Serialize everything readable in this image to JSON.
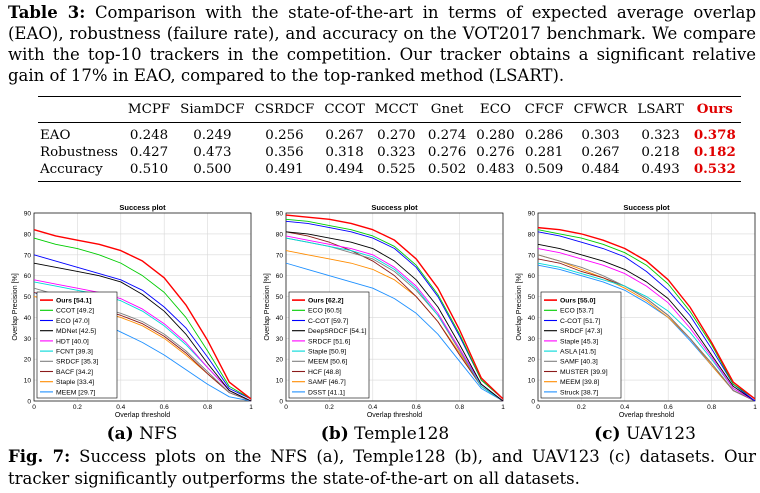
{
  "top_caption": {
    "label": "Table 3:",
    "text": "Comparison with the state-of-the-art in terms of expected average overlap (EAO), robustness (failure rate), and accuracy on the VOT2017 benchmark. We compare with the top-10 trackers in the competition. Our tracker obtains a significant relative gain of 17% in EAO, compared to the top-ranked method (LSART)."
  },
  "table": {
    "columns": [
      "MCPF",
      "SiamDCF",
      "CSRDCF",
      "CCOT",
      "MCCT",
      "Gnet",
      "ECO",
      "CFCF",
      "CFWCR",
      "LSART",
      "Ours"
    ],
    "rows": [
      {
        "label": "EAO",
        "values": [
          "0.248",
          "0.249",
          "0.256",
          "0.267",
          "0.270",
          "0.274",
          "0.280",
          "0.286",
          "0.303",
          "0.323",
          "0.378"
        ]
      },
      {
        "label": "Robustness",
        "values": [
          "0.427",
          "0.473",
          "0.356",
          "0.318",
          "0.323",
          "0.276",
          "0.276",
          "0.281",
          "0.267",
          "0.218",
          "0.182"
        ]
      },
      {
        "label": "Accuracy",
        "values": [
          "0.510",
          "0.500",
          "0.491",
          "0.494",
          "0.525",
          "0.502",
          "0.483",
          "0.509",
          "0.484",
          "0.493",
          "0.532"
        ]
      }
    ],
    "highlight_color": "#e00000"
  },
  "chart_data": [
    {
      "type": "line",
      "title": "Success plot",
      "xlabel": "Overlap threshold",
      "ylabel": "Overlap Precision [%]",
      "xlim": [
        0,
        1
      ],
      "ylim": [
        0,
        90
      ],
      "xticks": [
        "0",
        "0.2",
        "0.4",
        "0.6",
        "0.8",
        "1"
      ],
      "yticks": [
        "0",
        "10",
        "20",
        "30",
        "40",
        "50",
        "60",
        "70",
        "80",
        "90"
      ],
      "grid": true,
      "legend_position": "bottom-left",
      "x": [
        0,
        0.1,
        0.2,
        0.3,
        0.4,
        0.5,
        0.6,
        0.7,
        0.8,
        0.9,
        1.0
      ],
      "series": [
        {
          "name": "Ours [54.1]",
          "color": "#ff0000",
          "bold": true,
          "values": [
            82,
            79,
            77,
            75,
            72,
            67,
            59,
            46,
            29,
            9,
            1
          ]
        },
        {
          "name": "CCOT [49.2]",
          "color": "#00cc00",
          "values": [
            78,
            75,
            73,
            70,
            66,
            60,
            52,
            40,
            24,
            7,
            1
          ]
        },
        {
          "name": "ECO [47.0]",
          "color": "#0000ff",
          "values": [
            70,
            67,
            64,
            61,
            58,
            53,
            45,
            35,
            21,
            6,
            1
          ]
        },
        {
          "name": "MDNet [42.5]",
          "color": "#000000",
          "values": [
            66,
            64,
            62,
            60,
            57,
            51,
            43,
            32,
            18,
            5,
            0
          ]
        },
        {
          "name": "HDT [40.0]",
          "color": "#ff00ff",
          "values": [
            58,
            56,
            54,
            52,
            49,
            44,
            37,
            28,
            16,
            5,
            0
          ]
        },
        {
          "name": "FCNT [39.3]",
          "color": "#00d8d8",
          "values": [
            57,
            55,
            53,
            51,
            48,
            43,
            36,
            27,
            16,
            5,
            0
          ]
        },
        {
          "name": "SRDCF [35.3]",
          "color": "#808080",
          "values": [
            54,
            51,
            48,
            45,
            42,
            38,
            32,
            24,
            14,
            4,
            0
          ]
        },
        {
          "name": "BACF [34.2]",
          "color": "#8b1a1a",
          "values": [
            52,
            49,
            47,
            44,
            41,
            37,
            31,
            23,
            13,
            4,
            0
          ]
        },
        {
          "name": "Staple [33.4]",
          "color": "#ff8c00",
          "values": [
            50,
            48,
            46,
            43,
            40,
            36,
            30,
            22,
            13,
            4,
            0
          ]
        },
        {
          "name": "MEEM [29.7]",
          "color": "#1e90ff",
          "values": [
            52,
            47,
            42,
            38,
            33,
            28,
            22,
            15,
            8,
            2,
            0
          ]
        }
      ],
      "caption_label": "(a)",
      "caption_text": "NFS"
    },
    {
      "type": "line",
      "title": "Success plot",
      "xlabel": "Overlap threshold",
      "ylabel": "Overlap Precision [%]",
      "xlim": [
        0,
        1
      ],
      "ylim": [
        0,
        90
      ],
      "xticks": [
        "0",
        "0.2",
        "0.4",
        "0.6",
        "0.8",
        "1"
      ],
      "yticks": [
        "0",
        "10",
        "20",
        "30",
        "40",
        "50",
        "60",
        "70",
        "80",
        "90"
      ],
      "grid": true,
      "legend_position": "bottom-left",
      "x": [
        0,
        0.1,
        0.2,
        0.3,
        0.4,
        0.5,
        0.6,
        0.7,
        0.8,
        0.9,
        1.0
      ],
      "series": [
        {
          "name": "Ours [62.2]",
          "color": "#ff0000",
          "bold": true,
          "values": [
            89,
            88,
            87,
            85,
            82,
            77,
            68,
            54,
            34,
            11,
            1
          ]
        },
        {
          "name": "ECO [60.5]",
          "color": "#00cc00",
          "values": [
            87,
            86,
            84,
            82,
            79,
            74,
            65,
            51,
            32,
            10,
            1
          ]
        },
        {
          "name": "C-COT [59.7]",
          "color": "#0000ff",
          "values": [
            86,
            85,
            83,
            81,
            78,
            73,
            64,
            50,
            31,
            10,
            1
          ]
        },
        {
          "name": "DeepSRDCF [54.1]",
          "color": "#000000",
          "values": [
            81,
            80,
            78,
            76,
            73,
            67,
            58,
            45,
            27,
            8,
            0
          ]
        },
        {
          "name": "SRDCF [51.6]",
          "color": "#ff00ff",
          "values": [
            79,
            77,
            75,
            73,
            70,
            64,
            55,
            42,
            25,
            8,
            0
          ]
        },
        {
          "name": "Staple [50.9]",
          "color": "#00d8d8",
          "values": [
            78,
            76,
            74,
            72,
            69,
            63,
            54,
            41,
            25,
            7,
            0
          ]
        },
        {
          "name": "MEEM [50.6]",
          "color": "#808080",
          "values": [
            78,
            76,
            74,
            71,
            68,
            62,
            53,
            41,
            24,
            7,
            0
          ]
        },
        {
          "name": "HCF [48.8]",
          "color": "#8b1a1a",
          "values": [
            81,
            79,
            76,
            72,
            67,
            60,
            50,
            38,
            22,
            7,
            0
          ]
        },
        {
          "name": "SAMF [46.7]",
          "color": "#ff8c00",
          "values": [
            72,
            70,
            68,
            66,
            63,
            58,
            50,
            38,
            23,
            7,
            0
          ]
        },
        {
          "name": "DSST [41.1]",
          "color": "#1e90ff",
          "values": [
            66,
            63,
            60,
            57,
            54,
            49,
            42,
            32,
            19,
            6,
            0
          ]
        }
      ],
      "caption_label": "(b)",
      "caption_text": "Temple128"
    },
    {
      "type": "line",
      "title": "Success plot",
      "xlabel": "Overlap threshold",
      "ylabel": "Overlap Precision [%]",
      "xlim": [
        0,
        1
      ],
      "ylim": [
        0,
        90
      ],
      "xticks": [
        "0",
        "0.2",
        "0.4",
        "0.6",
        "0.8",
        "1"
      ],
      "yticks": [
        "0",
        "10",
        "20",
        "30",
        "40",
        "50",
        "60",
        "70",
        "80",
        "90"
      ],
      "grid": true,
      "legend_position": "bottom-left",
      "x": [
        0,
        0.1,
        0.2,
        0.3,
        0.4,
        0.5,
        0.6,
        0.7,
        0.8,
        0.9,
        1.0
      ],
      "series": [
        {
          "name": "Ours [55.0]",
          "color": "#ff0000",
          "bold": true,
          "values": [
            83,
            82,
            80,
            77,
            73,
            67,
            58,
            45,
            28,
            9,
            1
          ]
        },
        {
          "name": "ECO [53.7]",
          "color": "#00cc00",
          "values": [
            82,
            80,
            78,
            75,
            71,
            65,
            56,
            43,
            27,
            8,
            1
          ]
        },
        {
          "name": "C-COT [51.7]",
          "color": "#0000ff",
          "values": [
            81,
            79,
            76,
            73,
            69,
            62,
            53,
            41,
            25,
            8,
            0
          ]
        },
        {
          "name": "SRDCF [47.3]",
          "color": "#000000",
          "values": [
            75,
            73,
            70,
            67,
            63,
            57,
            49,
            37,
            22,
            7,
            0
          ]
        },
        {
          "name": "Staple [45.3]",
          "color": "#ff00ff",
          "values": [
            73,
            71,
            68,
            65,
            61,
            55,
            47,
            35,
            21,
            6,
            0
          ]
        },
        {
          "name": "ASLA [41.5]",
          "color": "#00d8d8",
          "values": [
            66,
            64,
            61,
            58,
            55,
            50,
            43,
            33,
            20,
            6,
            0
          ]
        },
        {
          "name": "SAMF [40.3]",
          "color": "#808080",
          "values": [
            70,
            67,
            64,
            60,
            55,
            49,
            41,
            30,
            18,
            5,
            0
          ]
        },
        {
          "name": "MUSTER [39.9]",
          "color": "#8b1a1a",
          "values": [
            68,
            66,
            62,
            59,
            55,
            49,
            41,
            30,
            18,
            5,
            0
          ]
        },
        {
          "name": "MEEM [39.8]",
          "color": "#ff8c00",
          "values": [
            70,
            67,
            63,
            59,
            54,
            48,
            40,
            30,
            17,
            5,
            0
          ]
        },
        {
          "name": "Struck [38.7]",
          "color": "#1e90ff",
          "values": [
            65,
            63,
            60,
            57,
            53,
            47,
            40,
            29,
            17,
            5,
            0
          ]
        }
      ],
      "caption_label": "(c)",
      "caption_text": "UAV123"
    }
  ],
  "bottom_caption": {
    "label": "Fig. 7:",
    "text": "Success plots on the NFS (a), Temple128 (b), and UAV123 (c) datasets. Our tracker significantly outperforms the state-of-the-art on all datasets."
  }
}
